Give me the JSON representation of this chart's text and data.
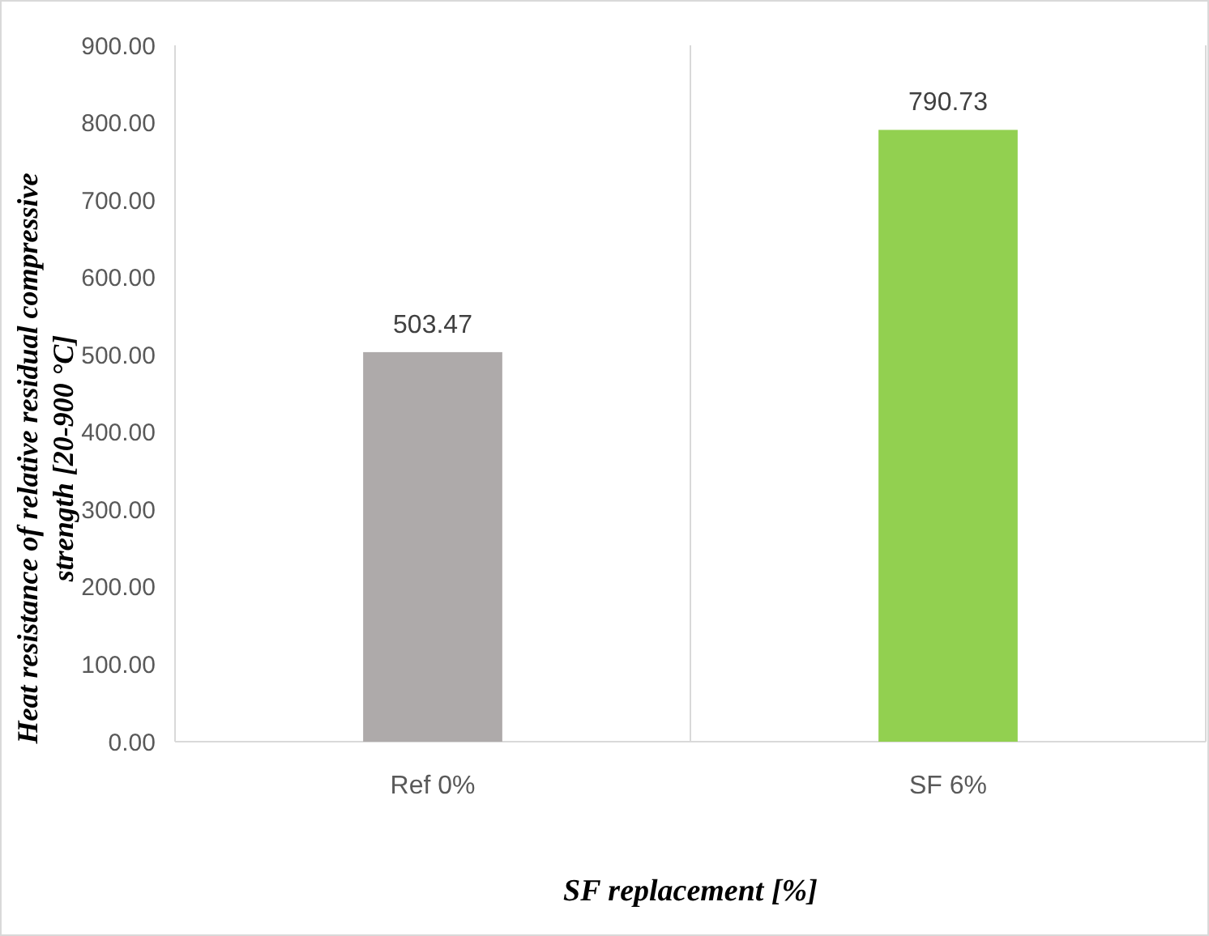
{
  "chart_data": {
    "type": "bar",
    "xlabel": "SF replacement [%]",
    "ylabel": "Heat resistance of relative residual compressive strength [20-900 °C]",
    "categories": [
      "Ref 0%",
      "SF 6%"
    ],
    "values": [
      503.47,
      790.73
    ],
    "colors": [
      "#aeaaaa",
      "#92d050"
    ],
    "ylim": [
      0,
      900
    ],
    "yticks": [
      {
        "value": 0,
        "label": "0.00"
      },
      {
        "value": 100,
        "label": "100.00"
      },
      {
        "value": 200,
        "label": "200.00"
      },
      {
        "value": 300,
        "label": "300.00"
      },
      {
        "value": 400,
        "label": "400.00"
      },
      {
        "value": 500,
        "label": "500.00"
      },
      {
        "value": 600,
        "label": "600.00"
      },
      {
        "value": 700,
        "label": "700.00"
      },
      {
        "value": 800,
        "label": "800.00"
      },
      {
        "value": 900,
        "label": "900.00"
      }
    ],
    "grid": "x",
    "data_labels": true
  }
}
